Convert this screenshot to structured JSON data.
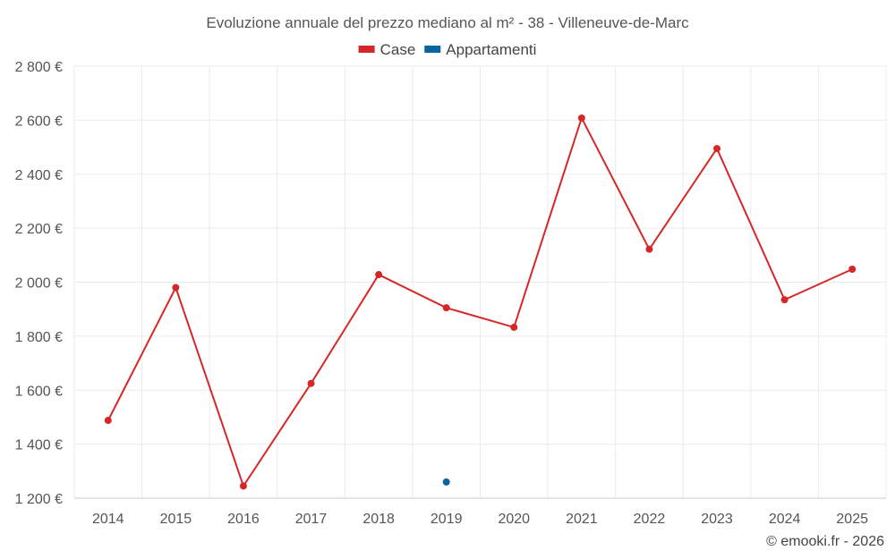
{
  "chart_data": {
    "type": "line",
    "title": "Evoluzione annuale del prezzo mediano al m² - 38 - Villeneuve-de-Marc",
    "xlabel": "",
    "ylabel": "",
    "categories": [
      "2014",
      "2015",
      "2016",
      "2017",
      "2018",
      "2019",
      "2020",
      "2021",
      "2022",
      "2023",
      "2024",
      "2025"
    ],
    "ylim": [
      1200,
      2800
    ],
    "yticks": [
      1200,
      1400,
      1600,
      1800,
      2000,
      2200,
      2400,
      2600,
      2800
    ],
    "ytick_labels": [
      "1 200 €",
      "1 400 €",
      "1 600 €",
      "1 800 €",
      "2 000 €",
      "2 200 €",
      "2 400 €",
      "2 600 €",
      "2 800 €"
    ],
    "grid": true,
    "legend_position": "top-center",
    "series": [
      {
        "name": "Case",
        "color": "#d62728",
        "values": [
          1488,
          1980,
          1245,
          1625,
          2028,
          1905,
          1833,
          2608,
          2122,
          2495,
          1935,
          2048
        ]
      },
      {
        "name": "Appartamenti",
        "color": "#0b63a0",
        "values": [
          null,
          null,
          null,
          null,
          null,
          1260,
          null,
          null,
          null,
          null,
          null,
          null
        ]
      }
    ]
  },
  "credit": "© emooki.fr - 2026"
}
